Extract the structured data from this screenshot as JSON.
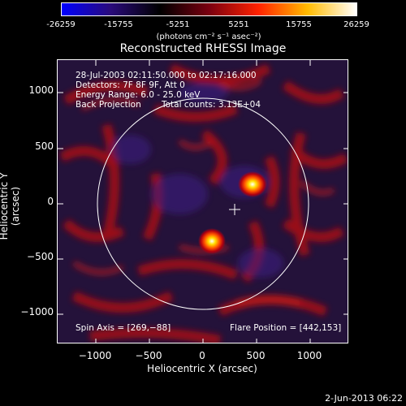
{
  "colorbar": {
    "ticks": [
      "-26259",
      "-15755",
      "-5251",
      "5251",
      "15755",
      "26259"
    ],
    "unit_label": "(photons cm⁻² s⁻¹ asec⁻²)",
    "stops": [
      "#0000ff",
      "#2a0b7a",
      "#000000",
      "#7a0010",
      "#ff2200",
      "#ffbb00",
      "#ffffff"
    ]
  },
  "plot": {
    "title": "Reconstructed RHESSI Image",
    "xlabel": "Heliocentric X (arcsec)",
    "ylabel": "Heliocentric Y (arcsec)",
    "xticks": [
      "−1000",
      "−500",
      "0",
      "500",
      "1000"
    ],
    "yticks": [
      "1000",
      "500",
      "0",
      "−500",
      "−1000"
    ],
    "info": {
      "time_range": "28-Jul-2003 02:11:50.000 to 02:17:16.000",
      "detectors": "Detectors: 7F 8F 9F, Att 0",
      "energy": "Energy Range: 6.0 - 25.0 keV",
      "method": "Back Projection",
      "counts": "Total counts: 3.13E+04",
      "spin_axis": "Spin Axis = [269,−88]",
      "flare_position": "Flare Position = [442,153]"
    }
  },
  "footer": {
    "date": "2-Jun-2013 06:22"
  }
}
